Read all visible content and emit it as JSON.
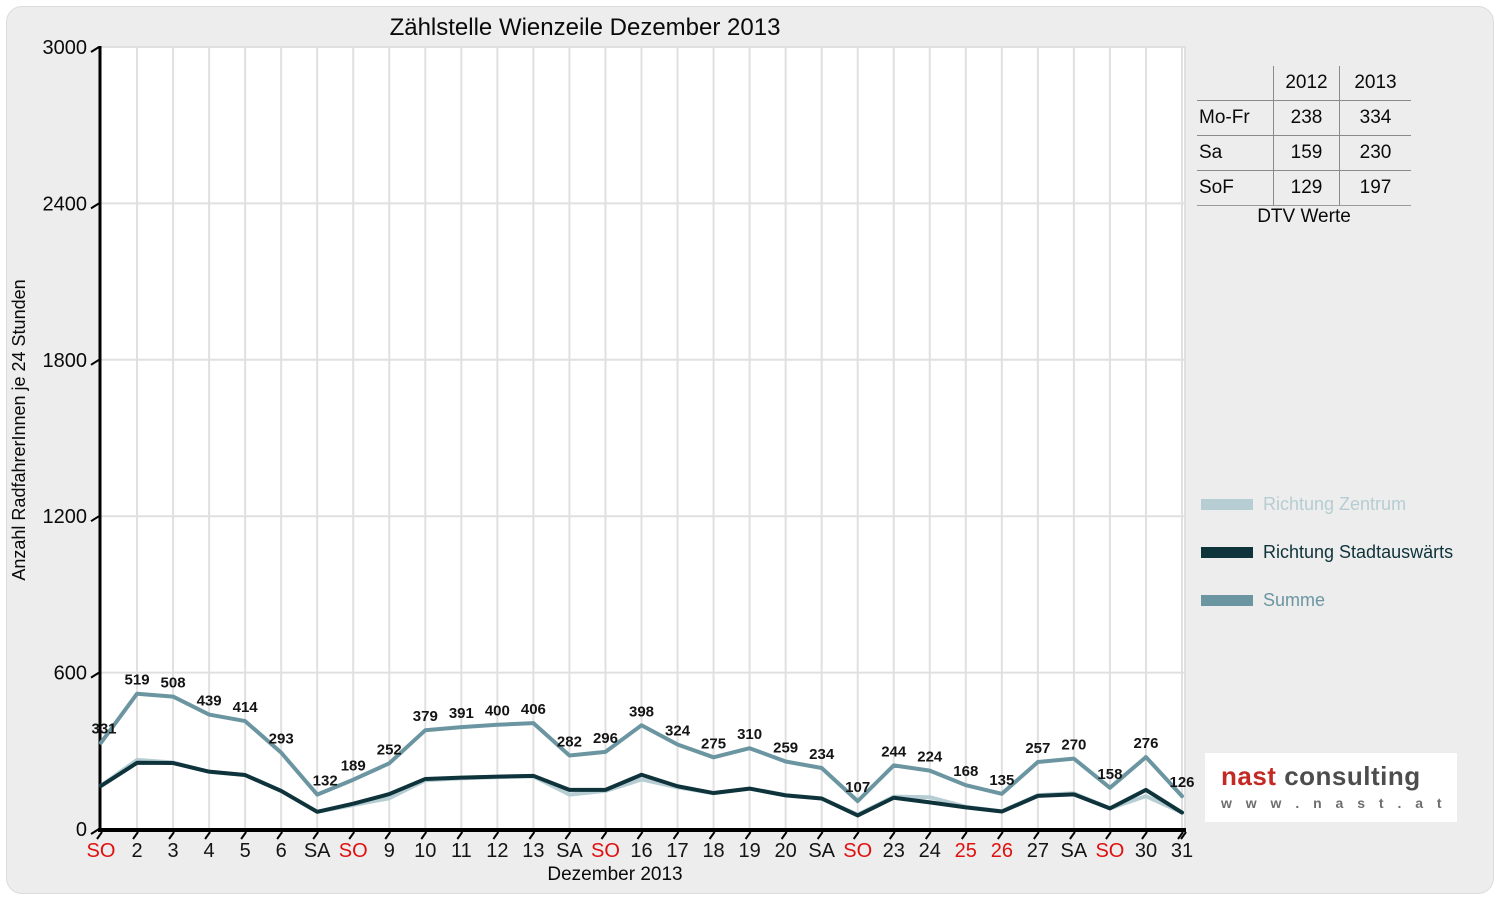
{
  "header": {
    "title": "Zählstelle Wienzeile Dezember 2013"
  },
  "chart_data": {
    "type": "line",
    "title": "Zählstelle Wienzeile Dezember 2013",
    "xlabel": "Dezember 2013",
    "ylabel": "Anzahl RadfahrerInnen je 24 Stunden",
    "ylim": [
      0,
      3000
    ],
    "yticks": [
      0,
      600,
      1200,
      1800,
      2400,
      3000
    ],
    "grid": true,
    "legend_position": "right",
    "categories": [
      "SO",
      "2",
      "3",
      "4",
      "5",
      "6",
      "SA",
      "SO",
      "9",
      "10",
      "11",
      "12",
      "13",
      "SA",
      "SO",
      "16",
      "17",
      "18",
      "19",
      "20",
      "SA",
      "SO",
      "23",
      "24",
      "25",
      "26",
      "27",
      "SA",
      "SO",
      "30",
      "31"
    ],
    "red_category_indices": [
      0,
      7,
      14,
      21,
      24,
      25,
      28
    ],
    "red_label_color": "#e01010",
    "series": [
      {
        "name": "Richtung Zentrum",
        "color": "#b5cdd3",
        "values": [
          166,
          265,
          255,
          219,
          207,
          147,
          66,
          92,
          118,
          187,
          194,
          199,
          202,
          132,
          146,
          190,
          160,
          137,
          155,
          130,
          117,
          55,
          124,
          122,
          85,
          68,
          130,
          137,
          79,
          126,
          63
        ]
      },
      {
        "name": "Richtung Stadtauswärts",
        "color": "#0e333b",
        "values": [
          165,
          254,
          253,
          220,
          207,
          146,
          66,
          97,
          134,
          192,
          197,
          201,
          204,
          150,
          150,
          208,
          164,
          138,
          155,
          129,
          117,
          52,
          120,
          102,
          83,
          67,
          127,
          133,
          79,
          150,
          63
        ]
      },
      {
        "name": "Summe",
        "color": "#6b96a1",
        "data_labels": true,
        "values": [
          331,
          519,
          508,
          439,
          414,
          293,
          132,
          189,
          252,
          379,
          391,
          400,
          406,
          282,
          296,
          398,
          324,
          275,
          310,
          259,
          234,
          107,
          244,
          224,
          168,
          135,
          257,
          270,
          158,
          276,
          126
        ]
      }
    ]
  },
  "dtv_table": {
    "col_headers": [
      "2012",
      "2013"
    ],
    "rows": [
      {
        "label": "Mo-Fr",
        "y2012": "238",
        "y2013": "334"
      },
      {
        "label": "Sa",
        "y2012": "159",
        "y2013": "230"
      },
      {
        "label": "SoF",
        "y2012": "129",
        "y2013": "197"
      }
    ],
    "caption": "DTV Werte"
  },
  "logo": {
    "brand_primary": "nast",
    "brand_secondary": " consulting",
    "website": "w w w . n a s t . a t"
  }
}
